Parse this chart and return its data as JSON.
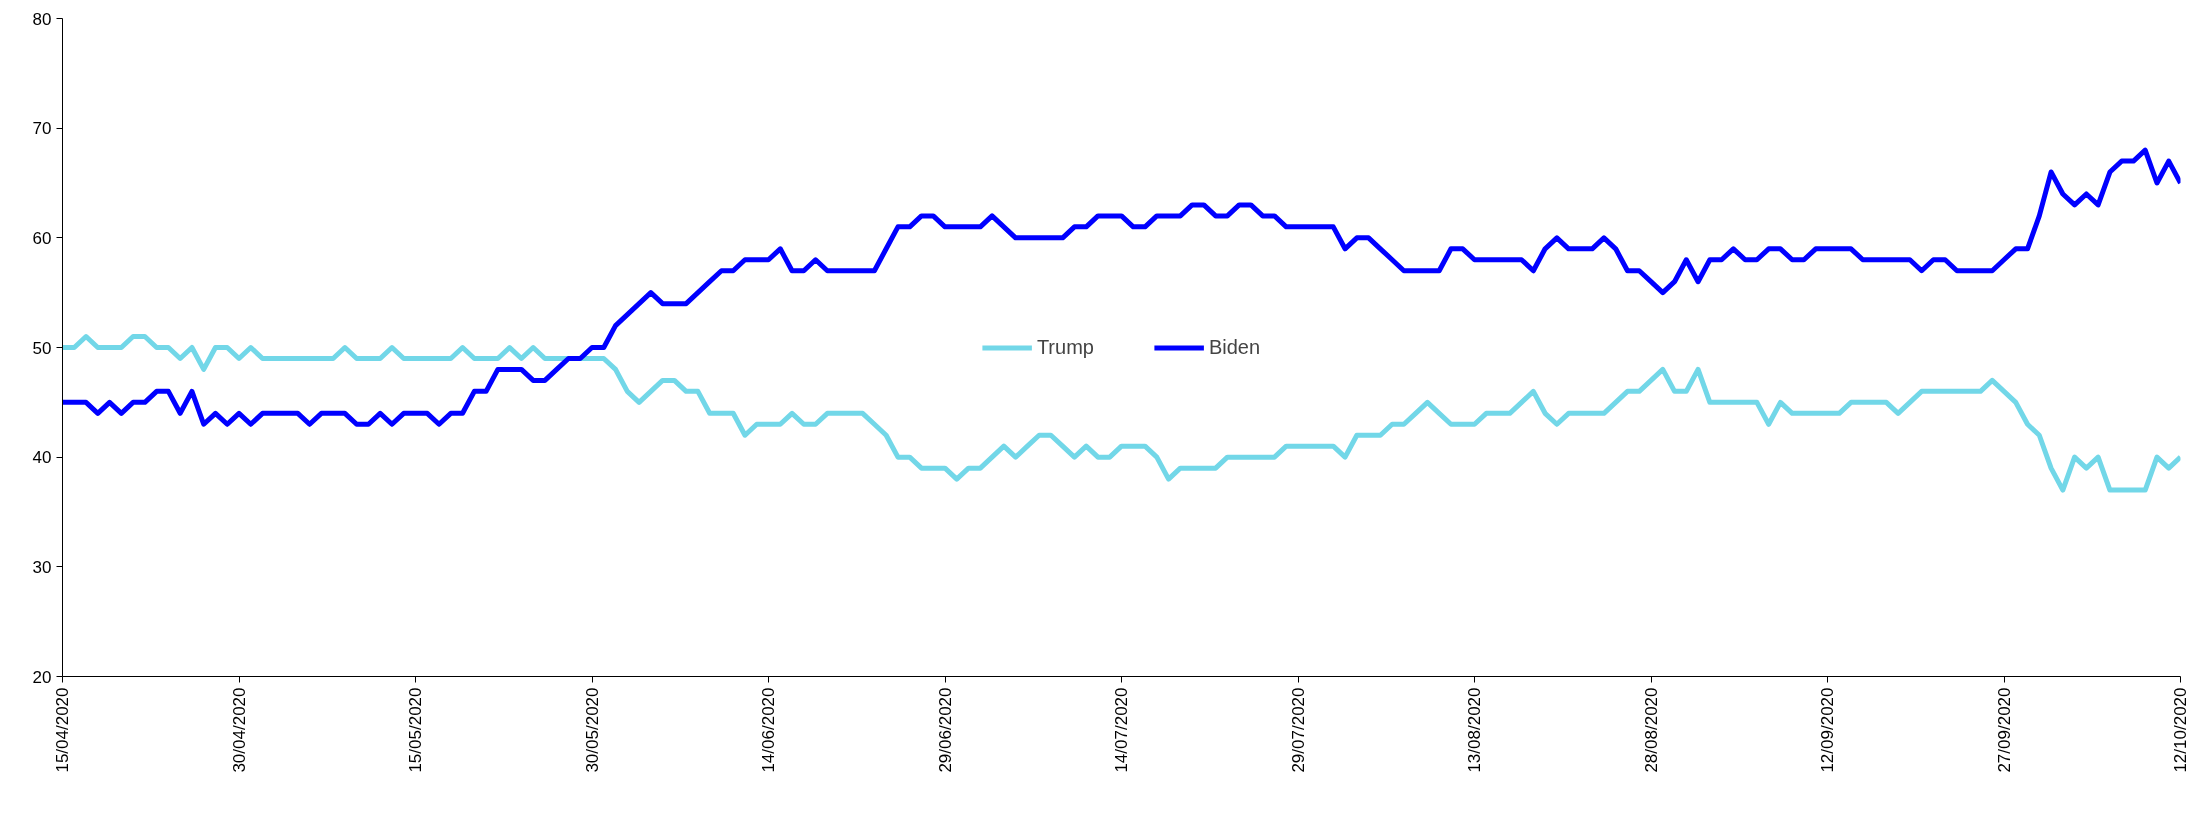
{
  "chart_data": {
    "type": "line",
    "x": [
      "2020-04-15",
      "2020-04-16",
      "2020-04-17",
      "2020-04-18",
      "2020-04-19",
      "2020-04-20",
      "2020-04-21",
      "2020-04-22",
      "2020-04-23",
      "2020-04-24",
      "2020-04-25",
      "2020-04-26",
      "2020-04-27",
      "2020-04-28",
      "2020-04-29",
      "2020-04-30",
      "2020-05-01",
      "2020-05-02",
      "2020-05-03",
      "2020-05-04",
      "2020-05-05",
      "2020-05-06",
      "2020-05-07",
      "2020-05-08",
      "2020-05-09",
      "2020-05-10",
      "2020-05-11",
      "2020-05-12",
      "2020-05-13",
      "2020-05-14",
      "2020-05-15",
      "2020-05-16",
      "2020-05-17",
      "2020-05-18",
      "2020-05-19",
      "2020-05-20",
      "2020-05-21",
      "2020-05-22",
      "2020-05-23",
      "2020-05-24",
      "2020-05-25",
      "2020-05-26",
      "2020-05-27",
      "2020-05-28",
      "2020-05-29",
      "2020-05-30",
      "2020-05-31",
      "2020-06-01",
      "2020-06-02",
      "2020-06-03",
      "2020-06-04",
      "2020-06-05",
      "2020-06-06",
      "2020-06-07",
      "2020-06-08",
      "2020-06-09",
      "2020-06-10",
      "2020-06-11",
      "2020-06-12",
      "2020-06-13",
      "2020-06-14",
      "2020-06-15",
      "2020-06-16",
      "2020-06-17",
      "2020-06-18",
      "2020-06-19",
      "2020-06-20",
      "2020-06-21",
      "2020-06-22",
      "2020-06-23",
      "2020-06-24",
      "2020-06-25",
      "2020-06-26",
      "2020-06-27",
      "2020-06-28",
      "2020-06-29",
      "2020-06-30",
      "2020-07-01",
      "2020-07-02",
      "2020-07-03",
      "2020-07-04",
      "2020-07-05",
      "2020-07-06",
      "2020-07-07",
      "2020-07-08",
      "2020-07-09",
      "2020-07-10",
      "2020-07-11",
      "2020-07-12",
      "2020-07-13",
      "2020-07-14",
      "2020-07-15",
      "2020-07-16",
      "2020-07-17",
      "2020-07-18",
      "2020-07-19",
      "2020-07-20",
      "2020-07-21",
      "2020-07-22",
      "2020-07-23",
      "2020-07-24",
      "2020-07-25",
      "2020-07-26",
      "2020-07-27",
      "2020-07-28",
      "2020-07-29",
      "2020-07-30",
      "2020-07-31",
      "2020-08-01",
      "2020-08-02",
      "2020-08-03",
      "2020-08-04",
      "2020-08-05",
      "2020-08-06",
      "2020-08-07",
      "2020-08-08",
      "2020-08-09",
      "2020-08-10",
      "2020-08-11",
      "2020-08-12",
      "2020-08-13",
      "2020-08-14",
      "2020-08-15",
      "2020-08-16",
      "2020-08-17",
      "2020-08-18",
      "2020-08-19",
      "2020-08-20",
      "2020-08-21",
      "2020-08-22",
      "2020-08-23",
      "2020-08-24",
      "2020-08-25",
      "2020-08-26",
      "2020-08-27",
      "2020-08-28",
      "2020-08-29",
      "2020-08-30",
      "2020-08-31",
      "2020-09-01",
      "2020-09-02",
      "2020-09-03",
      "2020-09-04",
      "2020-09-05",
      "2020-09-06",
      "2020-09-07",
      "2020-09-08",
      "2020-09-09",
      "2020-09-10",
      "2020-09-11",
      "2020-09-12",
      "2020-09-13",
      "2020-09-14",
      "2020-09-15",
      "2020-09-16",
      "2020-09-17",
      "2020-09-18",
      "2020-09-19",
      "2020-09-20",
      "2020-09-21",
      "2020-09-22",
      "2020-09-23",
      "2020-09-24",
      "2020-09-25",
      "2020-09-26",
      "2020-09-27",
      "2020-09-28",
      "2020-09-29",
      "2020-09-30",
      "2020-10-01",
      "2020-10-02",
      "2020-10-03",
      "2020-10-04",
      "2020-10-05",
      "2020-10-06",
      "2020-10-07",
      "2020-10-08",
      "2020-10-09",
      "2020-10-10",
      "2020-10-11",
      "2020-10-12"
    ],
    "series": [
      {
        "name": "Trump",
        "color": "#72d7e8",
        "values": [
          50,
          50,
          51,
          50,
          50,
          50,
          51,
          51,
          50,
          50,
          49,
          50,
          48,
          50,
          50,
          49,
          50,
          49,
          49,
          49,
          49,
          49,
          49,
          49,
          50,
          49,
          49,
          49,
          50,
          49,
          49,
          49,
          49,
          49,
          50,
          49,
          49,
          49,
          50,
          49,
          50,
          49,
          49,
          49,
          49,
          49,
          49,
          48,
          46,
          45,
          46,
          47,
          47,
          46,
          46,
          44,
          44,
          44,
          42,
          43,
          43,
          43,
          44,
          43,
          43,
          44,
          44,
          44,
          44,
          43,
          42,
          40,
          40,
          39,
          39,
          39,
          38,
          39,
          39,
          40,
          41,
          40,
          41,
          42,
          42,
          41,
          40,
          41,
          40,
          40,
          41,
          41,
          41,
          40,
          38,
          39,
          39,
          39,
          39,
          40,
          40,
          40,
          40,
          40,
          41,
          41,
          41,
          41,
          41,
          40,
          42,
          42,
          42,
          43,
          43,
          44,
          45,
          44,
          43,
          43,
          43,
          44,
          44,
          44,
          45,
          46,
          44,
          43,
          44,
          44,
          44,
          44,
          45,
          46,
          46,
          47,
          48,
          46,
          46,
          48,
          45,
          45,
          45,
          45,
          45,
          43,
          45,
          44,
          44,
          44,
          44,
          44,
          45,
          45,
          45,
          45,
          44,
          45,
          46,
          46,
          46,
          46,
          46,
          46,
          47,
          46,
          45,
          43,
          42,
          39,
          37,
          40,
          39,
          40,
          37,
          37,
          37,
          37,
          40,
          39,
          40
        ]
      },
      {
        "name": "Biden",
        "color": "#0000ff",
        "values": [
          45,
          45,
          45,
          44,
          45,
          44,
          45,
          45,
          46,
          46,
          44,
          46,
          43,
          44,
          43,
          44,
          43,
          44,
          44,
          44,
          44,
          43,
          44,
          44,
          44,
          43,
          43,
          44,
          43,
          44,
          44,
          44,
          43,
          44,
          44,
          46,
          46,
          48,
          48,
          48,
          47,
          47,
          48,
          49,
          49,
          50,
          50,
          52,
          53,
          54,
          55,
          54,
          54,
          54,
          55,
          56,
          57,
          57,
          58,
          58,
          58,
          59,
          57,
          57,
          58,
          57,
          57,
          57,
          57,
          57,
          59,
          61,
          61,
          62,
          62,
          61,
          61,
          61,
          61,
          62,
          61,
          60,
          60,
          60,
          60,
          60,
          61,
          61,
          62,
          62,
          62,
          61,
          61,
          62,
          62,
          62,
          63,
          63,
          62,
          62,
          63,
          63,
          62,
          62,
          61,
          61,
          61,
          61,
          61,
          59,
          60,
          60,
          59,
          58,
          57,
          57,
          57,
          57,
          59,
          59,
          58,
          58,
          58,
          58,
          58,
          57,
          59,
          60,
          59,
          59,
          59,
          60,
          59,
          57,
          57,
          56,
          55,
          56,
          58,
          56,
          58,
          58,
          59,
          58,
          58,
          59,
          59,
          58,
          58,
          59,
          59,
          59,
          59,
          58,
          58,
          58,
          58,
          58,
          57,
          58,
          58,
          57,
          57,
          57,
          57,
          58,
          59,
          59,
          62,
          66,
          64,
          63,
          64,
          63,
          66,
          67,
          67,
          68,
          65,
          67,
          65
        ]
      }
    ],
    "xlim": [
      "2020-04-15",
      "2020-10-12"
    ],
    "xticks": [
      {
        "value": "2020-04-15",
        "label": "15/04/2020"
      },
      {
        "value": "2020-04-30",
        "label": "30/04/2020"
      },
      {
        "value": "2020-05-15",
        "label": "15/05/2020"
      },
      {
        "value": "2020-05-30",
        "label": "30/05/2020"
      },
      {
        "value": "2020-06-14",
        "label": "14/06/2020"
      },
      {
        "value": "2020-06-29",
        "label": "29/06/2020"
      },
      {
        "value": "2020-07-14",
        "label": "14/07/2020"
      },
      {
        "value": "2020-07-29",
        "label": "29/07/2020"
      },
      {
        "value": "2020-08-13",
        "label": "13/08/2020"
      },
      {
        "value": "2020-08-28",
        "label": "28/08/2020"
      },
      {
        "value": "2020-09-12",
        "label": "12/09/2020"
      },
      {
        "value": "2020-09-27",
        "label": "27/09/2020"
      },
      {
        "value": "2020-10-12",
        "label": "12/10/2020"
      }
    ],
    "ylim": [
      20,
      80
    ],
    "yticks": [
      20,
      30,
      40,
      50,
      60,
      70,
      80
    ],
    "grid": false,
    "legend": "center",
    "marker": "none",
    "line_style": "solid"
  }
}
